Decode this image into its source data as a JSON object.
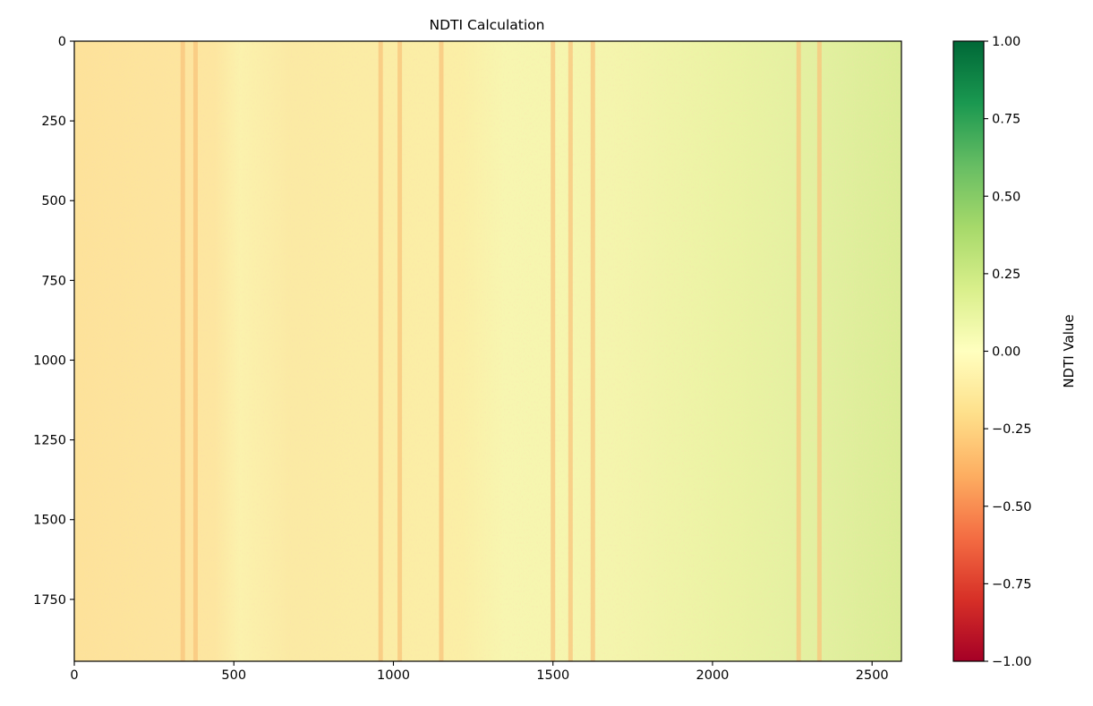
{
  "chart_data": {
    "type": "heatmap",
    "title": "NDTI Calculation",
    "xlabel": "",
    "ylabel": "",
    "xlim": [
      0,
      2592
    ],
    "ylim": [
      1944,
      0
    ],
    "x_ticks": [
      0,
      500,
      1000,
      1500,
      2000,
      2500
    ],
    "y_ticks": [
      0,
      250,
      500,
      750,
      1000,
      1250,
      1500,
      1750
    ],
    "x_tick_labels": [
      "0",
      "500",
      "1000",
      "1500",
      "2000",
      "2500"
    ],
    "y_tick_labels": [
      "0",
      "250",
      "500",
      "750",
      "1000",
      "1250",
      "1500",
      "1750"
    ],
    "colormap": "RdYlGn",
    "colorbar": {
      "label": "NDTI Value",
      "range": [
        -1.0,
        1.0
      ],
      "ticks": [
        1.0,
        0.75,
        0.5,
        0.25,
        0.0,
        -0.25,
        -0.5,
        -0.75,
        -1.0
      ],
      "tick_labels": [
        "1.00",
        "0.75",
        "0.50",
        "0.25",
        "0.00",
        "−0.25",
        "−0.50",
        "−0.75",
        "−1.00"
      ],
      "stops": [
        "#a50026",
        "#d73027",
        "#f46d43",
        "#fdae61",
        "#fee08b",
        "#ffffbf",
        "#d9ef8b",
        "#a6d96a",
        "#66bd63",
        "#1a9850",
        "#006837"
      ]
    },
    "value_summary": {
      "background_value_left": -0.12,
      "background_value_right": 0.2,
      "vertical_streaks_x": [
        340,
        380,
        960,
        1020,
        1150,
        1500,
        1555,
        1625,
        2270,
        2335
      ]
    },
    "grid": false,
    "legend": "colorbar-right"
  }
}
